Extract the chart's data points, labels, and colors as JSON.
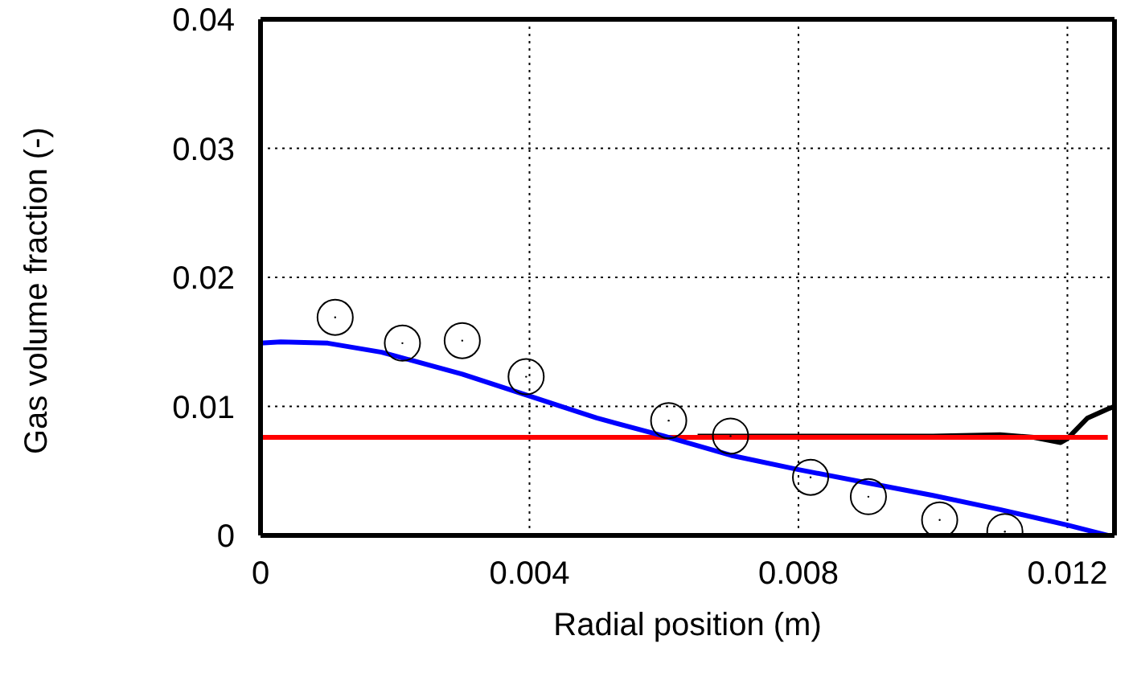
{
  "chart_data": {
    "type": "line",
    "xlabel": "Radial position (m)",
    "ylabel": "Gas volume fraction (-)",
    "xlim": [
      0,
      0.0127
    ],
    "ylim": [
      0,
      0.04
    ],
    "xticks": [
      0,
      0.004,
      0.008,
      0.012
    ],
    "yticks": [
      0,
      0.01,
      0.02,
      0.03,
      0.04
    ],
    "grid": true,
    "series": [
      {
        "type": "line",
        "color": "#000000",
        "x": [
          0.0065,
          0.008,
          0.01,
          0.011,
          0.0115,
          0.0119,
          0.012,
          0.0123,
          0.0126,
          0.0127
        ],
        "values": [
          0.0077,
          0.0077,
          0.0077,
          0.0078,
          0.0076,
          0.0072,
          0.0075,
          0.0091,
          0.0098,
          0.01
        ]
      },
      {
        "type": "line",
        "color": "#ff0000",
        "x": [
          0,
          0.0126
        ],
        "values": [
          0.0076,
          0.0076
        ]
      },
      {
        "type": "line",
        "color": "#0000ff",
        "x": [
          0,
          0.0003,
          0.001,
          0.0018,
          0.003,
          0.004,
          0.005,
          0.006,
          0.007,
          0.008,
          0.009,
          0.01,
          0.011,
          0.012,
          0.0126
        ],
        "values": [
          0.0149,
          0.015,
          0.0149,
          0.0142,
          0.0125,
          0.0108,
          0.0091,
          0.0077,
          0.0062,
          0.0051,
          0.0041,
          0.0031,
          0.002,
          0.0008,
          0
        ]
      },
      {
        "type": "scatter",
        "color": "#000000",
        "marker": "circle",
        "x": [
          0.00111,
          0.00211,
          0.003,
          0.00395,
          0.00607,
          0.00699,
          0.00818,
          0.00904,
          0.0101,
          0.01107
        ],
        "values": [
          0.0169,
          0.0149,
          0.0151,
          0.0123,
          0.0089,
          0.0077,
          0.0045,
          0.003,
          0.0012,
          0.0003
        ]
      }
    ]
  }
}
